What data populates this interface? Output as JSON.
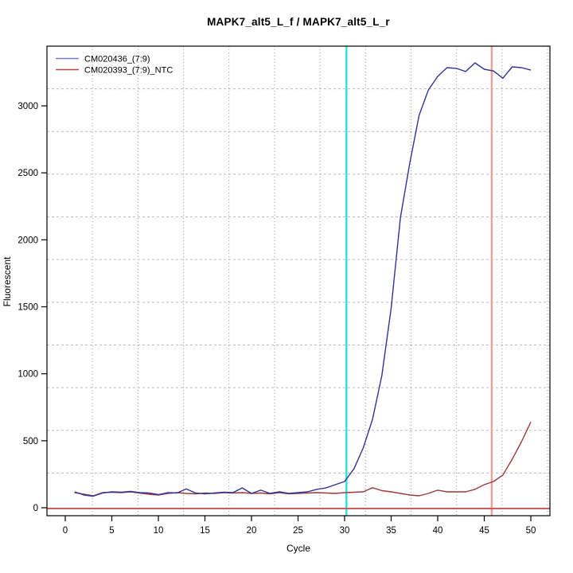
{
  "title": "MAPK7_alt5_L_f / MAPK7_alt5_L_r",
  "chart_data": {
    "type": "line",
    "title": "MAPK7_alt5_L_f / MAPK7_alt5_L_r",
    "xlabel": "Cycle",
    "ylabel": "Fluorescent",
    "xlim": [
      -2,
      52
    ],
    "ylim": [
      -60,
      3450
    ],
    "x_ticks": [
      0,
      5,
      10,
      15,
      20,
      25,
      30,
      35,
      40,
      45,
      50
    ],
    "y_ticks": [
      0,
      500,
      1000,
      1500,
      2000,
      2500,
      3000
    ],
    "grid": {
      "style": "dotted",
      "color": "#b4b4b4",
      "cells_x": 11,
      "cells_y": 11
    },
    "legend_position": "top-left",
    "x_start": 1,
    "series": [
      {
        "name": "CM020393_(7:9)_NTC",
        "color": "#9b3a3a",
        "legend_color": "#b24b4b",
        "values": [
          113,
          101,
          89,
          113,
          116,
          113,
          119,
          110,
          101,
          95,
          107,
          113,
          107,
          104,
          110,
          107,
          113,
          110,
          113,
          107,
          110,
          104,
          113,
          104,
          107,
          110,
          113,
          110,
          107,
          113,
          116,
          119,
          150,
          128,
          119,
          107,
          95,
          89,
          107,
          131,
          119,
          119,
          119,
          137,
          172,
          196,
          244,
          362,
          493,
          640
        ]
      },
      {
        "name": "CM020436_(7:9)",
        "color": "#32329b",
        "legend_color": "#7878cc",
        "values": [
          119,
          95,
          86,
          110,
          119,
          116,
          122,
          113,
          110,
          98,
          113,
          110,
          140,
          110,
          104,
          110,
          116,
          113,
          148,
          107,
          131,
          107,
          119,
          107,
          113,
          119,
          137,
          148,
          172,
          196,
          290,
          446,
          660,
          986,
          1490,
          2168,
          2572,
          2929,
          3119,
          3220,
          3285,
          3280,
          3256,
          3321,
          3273,
          3260,
          3206,
          3291,
          3285,
          3267
        ]
      }
    ],
    "reference_lines": {
      "vertical": [
        {
          "x": 30.2,
          "color": "#26e2e6",
          "meaning": "cyan-threshold-cycle-line"
        },
        {
          "x": 45.8,
          "color": "#ef9d9d",
          "meaning": "red-cutoff-cycle-line"
        }
      ],
      "horizontal": [
        {
          "y": 0,
          "color": "#cf5b5b",
          "meaning": "baseline-threshold-line"
        }
      ]
    }
  }
}
